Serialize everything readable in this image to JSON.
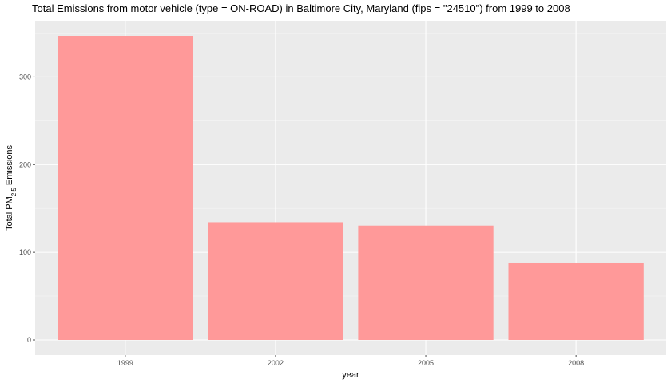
{
  "chart_data": {
    "type": "bar",
    "title": "Total Emissions from motor vehicle (type = ON-ROAD) in Baltimore City, Maryland (fips = \"24510\") from 1999 to 2008",
    "xlabel": "year",
    "ylabel": {
      "prefix": "Total PM",
      "subscript": "2.5",
      "suffix": " Emissions"
    },
    "categories": [
      "1999",
      "2002",
      "2005",
      "2008"
    ],
    "values": [
      346.8,
      134.3,
      130.4,
      88.3
    ],
    "yticks": [
      0,
      100,
      200,
      300
    ],
    "ytick_labels": [
      "0",
      "100",
      "200",
      "300"
    ],
    "ylim": [
      -17.3,
      364.1
    ],
    "grid": true,
    "legend": "none",
    "colors": {
      "bar": "#FF9999",
      "panel": "#EBEBEB",
      "grid_major": "#FFFFFF",
      "grid_minor": "#F5F5F5",
      "tick": "#4D4D4D"
    }
  }
}
